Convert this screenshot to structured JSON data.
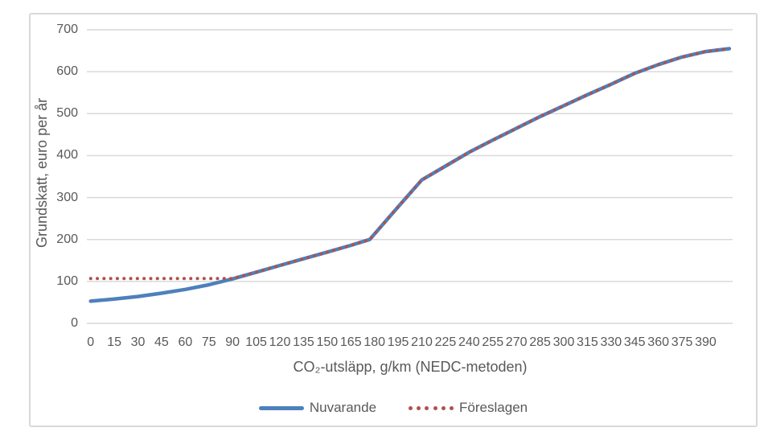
{
  "chart_data": {
    "type": "line",
    "x": [
      0,
      15,
      30,
      45,
      60,
      75,
      90,
      105,
      120,
      135,
      150,
      165,
      177,
      195,
      210,
      225,
      240,
      255,
      270,
      285,
      300,
      315,
      330,
      345,
      360,
      375,
      390,
      405
    ],
    "series": [
      {
        "name": "Nuvarande",
        "style": "solid",
        "color": "#4e80bc",
        "values": [
          53,
          58,
          64,
          72,
          81,
          92,
          106,
          122,
          138,
          154,
          170,
          186,
          200,
          278,
          342,
          375,
          408,
          437,
          465,
          493,
          519,
          545,
          570,
          596,
          617,
          635,
          648,
          655
        ]
      },
      {
        "name": "Föreslagen",
        "style": "dotted",
        "color": "#b0514d",
        "values": [
          107,
          107,
          107,
          107,
          107,
          107,
          107,
          122,
          138,
          154,
          170,
          186,
          200,
          278,
          342,
          375,
          408,
          437,
          465,
          493,
          519,
          545,
          570,
          596,
          617,
          635,
          648,
          655
        ]
      }
    ],
    "xlabel": "CO₂-utsläpp, g/km (NEDC-metoden)",
    "ylabel": "Grundskatt, euro per år",
    "xlim": [
      0,
      405
    ],
    "ylim": [
      0,
      700
    ],
    "ytick_step": 100,
    "yticks": [
      0,
      100,
      200,
      300,
      400,
      500,
      600,
      700
    ],
    "xticks": [
      0,
      15,
      30,
      45,
      60,
      75,
      90,
      105,
      120,
      135,
      150,
      165,
      180,
      195,
      210,
      225,
      240,
      255,
      270,
      285,
      300,
      315,
      330,
      345,
      360,
      375,
      390
    ],
    "grid": true,
    "legend_position": "bottom",
    "colors": {
      "gridline": "#d9d9d9",
      "frame_border": "#d9d9d9",
      "axis_text": "#595959"
    }
  }
}
